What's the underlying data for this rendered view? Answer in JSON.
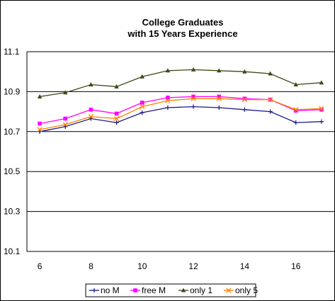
{
  "chart_data": {
    "type": "line",
    "title_lines": [
      "College Graduates",
      "with 15 Years Experience"
    ],
    "xlabel": "",
    "ylabel": "",
    "x": [
      6,
      7,
      8,
      9,
      10,
      11,
      12,
      13,
      14,
      15,
      16,
      17
    ],
    "xlim": [
      5.5,
      17.5
    ],
    "ylim": [
      10.1,
      11.1
    ],
    "x_ticks": [
      6,
      8,
      10,
      12,
      14,
      16
    ],
    "y_ticks": [
      10.1,
      10.3,
      10.5,
      10.7,
      10.9,
      11.1
    ],
    "x_tick_labels": [
      "6",
      "8",
      "10",
      "12",
      "14",
      "16"
    ],
    "y_tick_labels": [
      "10.1",
      "10.3",
      "10.5",
      "10.7",
      "10.9",
      "11.1"
    ],
    "grid": "horizontal",
    "legend_position": "bottom",
    "series": [
      {
        "name": "no M",
        "color": "#1a1a8c",
        "marker": "plus",
        "values": [
          10.7,
          10.725,
          10.765,
          10.745,
          10.795,
          10.82,
          10.825,
          10.82,
          10.81,
          10.8,
          10.745,
          10.75
        ]
      },
      {
        "name": "free M",
        "color": "#ff00ff",
        "marker": "square",
        "values": [
          10.74,
          10.765,
          10.81,
          10.79,
          10.845,
          10.87,
          10.875,
          10.875,
          10.865,
          10.86,
          10.805,
          10.81
        ]
      },
      {
        "name": "only 1",
        "color": "#3a4a14",
        "marker": "triangle",
        "values": [
          10.875,
          10.895,
          10.935,
          10.925,
          10.975,
          11.005,
          11.01,
          11.005,
          11.0,
          10.99,
          10.935,
          10.945
        ]
      },
      {
        "name": "only 5",
        "color": "#ff8000",
        "marker": "x",
        "values": [
          10.71,
          10.735,
          10.775,
          10.765,
          10.825,
          10.855,
          10.865,
          10.865,
          10.86,
          10.86,
          10.81,
          10.815
        ]
      }
    ]
  }
}
